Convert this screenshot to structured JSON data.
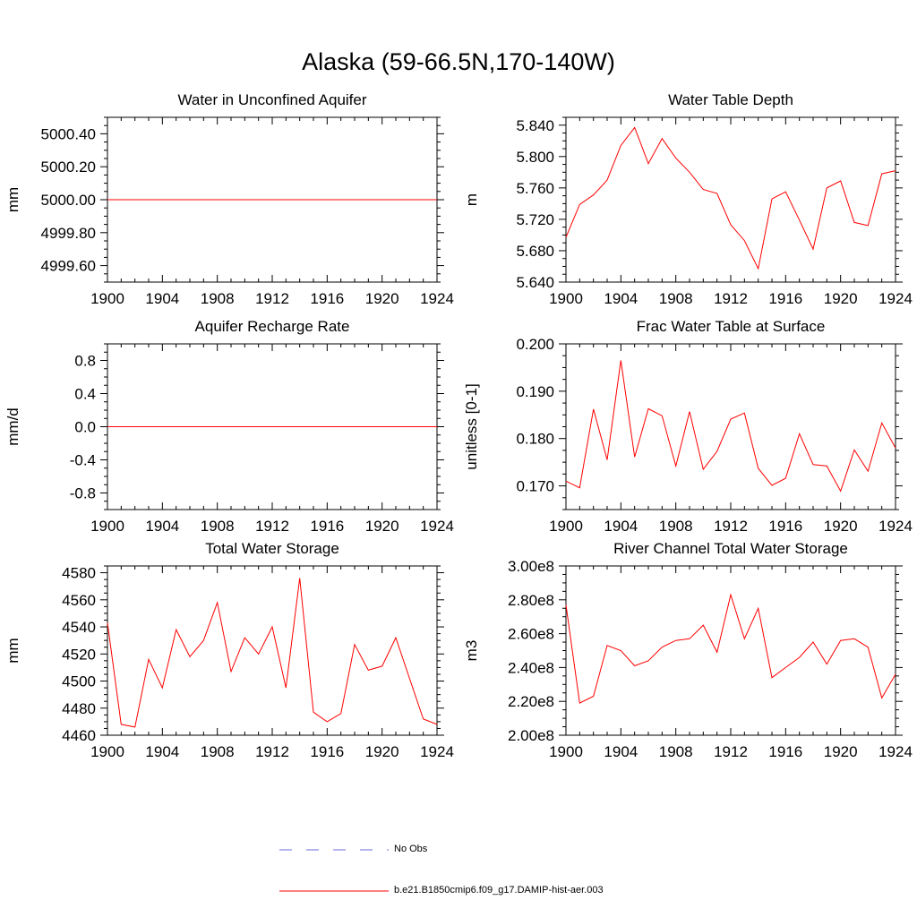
{
  "title": "Alaska (59-66.5N,170-140W)",
  "colors": {
    "model": "#ff0000",
    "obs": "#6a6adf",
    "axis": "#000000"
  },
  "legend": {
    "obs_label": "No Obs",
    "model_label": "b.e21.B1850cmip6.f09_g17.DAMIP-hist-aer.003"
  },
  "chart_data": [
    {
      "type": "line",
      "title": "Water in Unconfined Aquifer",
      "ylabel": "mm",
      "xlim": [
        1900,
        1924
      ],
      "ylim": [
        4999.5,
        5000.5
      ],
      "xticks": [
        1900,
        1904,
        1908,
        1912,
        1916,
        1920,
        1924
      ],
      "yticks": [
        4999.6,
        4999.8,
        5000.0,
        5000.2,
        5000.4
      ],
      "ytick_labels": [
        "4999.60",
        "4999.80",
        "5000.00",
        "5000.20",
        "5000.40"
      ],
      "yminor_step": 0.05,
      "x": [
        1900,
        1924
      ],
      "values": [
        5000.0,
        5000.0
      ]
    },
    {
      "type": "line",
      "title": "Water Table Depth",
      "ylabel": "m",
      "xlim": [
        1900,
        1924
      ],
      "ylim": [
        5.64,
        5.85
      ],
      "xticks": [
        1900,
        1904,
        1908,
        1912,
        1916,
        1920,
        1924
      ],
      "yticks": [
        5.64,
        5.68,
        5.72,
        5.76,
        5.8,
        5.84
      ],
      "ytick_labels": [
        "5.640",
        "5.680",
        "5.720",
        "5.760",
        "5.800",
        "5.840"
      ],
      "yminor_step": 0.01,
      "x": [
        1900,
        1901,
        1902,
        1903,
        1904,
        1905,
        1906,
        1907,
        1908,
        1909,
        1910,
        1911,
        1912,
        1913,
        1914,
        1915,
        1916,
        1917,
        1918,
        1919,
        1920,
        1921,
        1922,
        1923,
        1924
      ],
      "values": [
        5.697,
        5.739,
        5.751,
        5.77,
        5.814,
        5.837,
        5.791,
        5.823,
        5.798,
        5.78,
        5.758,
        5.753,
        5.713,
        5.693,
        5.657,
        5.746,
        5.755,
        5.719,
        5.682,
        5.76,
        5.769,
        5.716,
        5.712,
        5.778,
        5.782
      ]
    },
    {
      "type": "line",
      "title": "Aquifer Recharge Rate",
      "ylabel": "mm/d",
      "xlim": [
        1900,
        1924
      ],
      "ylim": [
        -1.0,
        1.0
      ],
      "xticks": [
        1900,
        1904,
        1908,
        1912,
        1916,
        1920,
        1924
      ],
      "yticks": [
        -0.8,
        -0.4,
        0.0,
        0.4,
        0.8
      ],
      "ytick_labels": [
        "-0.8",
        "-0.4",
        "0.0",
        "0.4",
        "0.8"
      ],
      "yminor_step": 0.1,
      "x": [
        1900,
        1924
      ],
      "values": [
        0.0,
        0.0
      ]
    },
    {
      "type": "line",
      "title": "Frac Water Table at Surface",
      "ylabel": "unitless [0-1]",
      "xlim": [
        1900,
        1924
      ],
      "ylim": [
        0.165,
        0.2
      ],
      "xticks": [
        1900,
        1904,
        1908,
        1912,
        1916,
        1920,
        1924
      ],
      "yticks": [
        0.17,
        0.18,
        0.19,
        0.2
      ],
      "ytick_labels": [
        "0.170",
        "0.180",
        "0.190",
        "0.200"
      ],
      "yminor_step": 0.0025,
      "x": [
        1900,
        1901,
        1902,
        1903,
        1904,
        1905,
        1906,
        1907,
        1908,
        1909,
        1910,
        1911,
        1912,
        1913,
        1914,
        1915,
        1916,
        1917,
        1918,
        1919,
        1920,
        1921,
        1922,
        1923,
        1924
      ],
      "values": [
        0.171,
        0.1696,
        0.1862,
        0.1755,
        0.1965,
        0.1761,
        0.1863,
        0.1848,
        0.1742,
        0.1857,
        0.1735,
        0.1773,
        0.1841,
        0.1854,
        0.1737,
        0.1701,
        0.1716,
        0.181,
        0.1745,
        0.1742,
        0.1689,
        0.1776,
        0.1731,
        0.1833,
        0.178
      ]
    },
    {
      "type": "line",
      "title": "Total Water Storage",
      "ylabel": "mm",
      "xlim": [
        1900,
        1924
      ],
      "ylim": [
        4460,
        4585
      ],
      "xticks": [
        1900,
        1904,
        1908,
        1912,
        1916,
        1920,
        1924
      ],
      "yticks": [
        4460,
        4480,
        4500,
        4520,
        4540,
        4560,
        4580
      ],
      "ytick_labels": [
        "4460",
        "4480",
        "4500",
        "4520",
        "4540",
        "4560",
        "4580"
      ],
      "yminor_step": 5,
      "x": [
        1900,
        1901,
        1902,
        1903,
        1904,
        1905,
        1906,
        1907,
        1908,
        1909,
        1910,
        1911,
        1912,
        1913,
        1914,
        1915,
        1916,
        1917,
        1918,
        1919,
        1920,
        1921,
        1922,
        1923,
        1924
      ],
      "values": [
        4543,
        4468,
        4466,
        4516,
        4495,
        4538,
        4518,
        4530,
        4558,
        4507,
        4532,
        4520,
        4540,
        4495,
        4576,
        4477,
        4470,
        4476,
        4527,
        4508,
        4511,
        4532,
        4502,
        4472,
        4468
      ]
    },
    {
      "type": "line",
      "title": "River Channel Total Water Storage",
      "ylabel": "m3",
      "xlim": [
        1900,
        1924
      ],
      "ylim": [
        200000000,
        300000000
      ],
      "xticks": [
        1900,
        1904,
        1908,
        1912,
        1916,
        1920,
        1924
      ],
      "yticks": [
        200000000,
        220000000,
        240000000,
        260000000,
        280000000,
        300000000
      ],
      "ytick_labels": [
        "2.00e8",
        "2.20e8",
        "2.40e8",
        "2.60e8",
        "2.80e8",
        "3.00e8"
      ],
      "yminor_step": 5000000,
      "x": [
        1900,
        1901,
        1902,
        1903,
        1904,
        1905,
        1906,
        1907,
        1908,
        1909,
        1910,
        1911,
        1912,
        1913,
        1914,
        1915,
        1916,
        1917,
        1918,
        1919,
        1920,
        1921,
        1922,
        1923,
        1924
      ],
      "values": [
        277000000,
        219000000,
        223000000,
        253000000,
        250000000,
        241000000,
        244000000,
        252000000,
        256000000,
        257000000,
        265000000,
        249000000,
        283000000,
        257000000,
        275000000,
        234000000,
        240000000,
        246000000,
        255000000,
        242000000,
        256000000,
        257000000,
        252000000,
        222000000,
        236000000
      ]
    }
  ]
}
